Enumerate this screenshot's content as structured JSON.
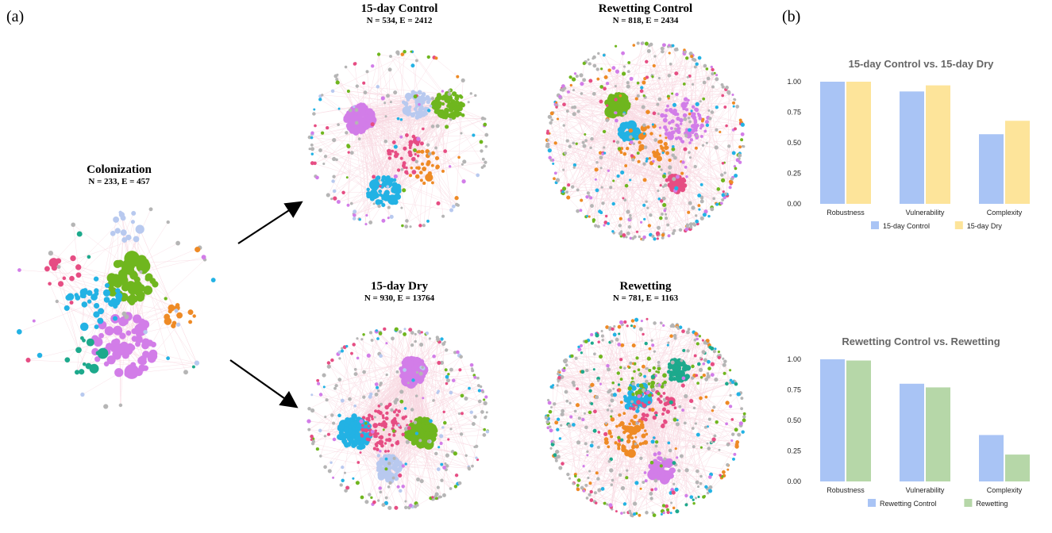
{
  "panels": {
    "a": "(a)",
    "b": "(b)"
  },
  "networks": [
    {
      "id": "colonization",
      "title": "Colonization",
      "stats": "N = 233, E = 457",
      "nodes": 233,
      "clusters": [
        {
          "color": "green",
          "fx": 0.58,
          "fy": 0.38,
          "r": 0.24,
          "share": 0.22,
          "size": 1.6
        },
        {
          "color": "violet",
          "fx": 0.55,
          "fy": 0.7,
          "r": 0.3,
          "share": 0.28,
          "size": 1.5
        },
        {
          "color": "cyan",
          "fx": 0.4,
          "fy": 0.5,
          "r": 0.28,
          "share": 0.14,
          "size": 1.2
        },
        {
          "color": "orange",
          "fx": 0.82,
          "fy": 0.55,
          "r": 0.14,
          "share": 0.05,
          "size": 1.0
        },
        {
          "color": "pink",
          "fx": 0.25,
          "fy": 0.35,
          "r": 0.18,
          "share": 0.05,
          "size": 1.0
        },
        {
          "color": "teal",
          "fx": 0.35,
          "fy": 0.75,
          "r": 0.2,
          "share": 0.05,
          "size": 1.0
        },
        {
          "color": "lightblue",
          "fx": 0.55,
          "fy": 0.12,
          "r": 0.18,
          "share": 0.06,
          "size": 1.0
        }
      ]
    },
    {
      "id": "control15",
      "title": "15-day Control",
      "stats": "N = 534, E = 2412",
      "nodes": 534,
      "clusters": [
        {
          "color": "violet",
          "fx": 0.28,
          "fy": 0.38,
          "r": 0.16,
          "share": 0.2,
          "size": 1.6
        },
        {
          "color": "cyan",
          "fx": 0.42,
          "fy": 0.78,
          "r": 0.18,
          "share": 0.12,
          "size": 1.3
        },
        {
          "color": "green",
          "fx": 0.78,
          "fy": 0.3,
          "r": 0.16,
          "share": 0.14,
          "size": 1.3
        },
        {
          "color": "lightblue",
          "fx": 0.6,
          "fy": 0.3,
          "r": 0.16,
          "share": 0.1,
          "size": 1.1
        },
        {
          "color": "pink",
          "fx": 0.55,
          "fy": 0.58,
          "r": 0.22,
          "share": 0.06,
          "size": 1.0
        },
        {
          "color": "orange",
          "fx": 0.65,
          "fy": 0.65,
          "r": 0.2,
          "share": 0.05,
          "size": 1.0
        }
      ]
    },
    {
      "id": "rewetControl",
      "title": "Rewetting Control",
      "stats": "N = 818, E = 2434",
      "nodes": 818,
      "clusters": [
        {
          "color": "green",
          "fx": 0.36,
          "fy": 0.32,
          "r": 0.11,
          "share": 0.14,
          "size": 1.5
        },
        {
          "color": "cyan",
          "fx": 0.42,
          "fy": 0.46,
          "r": 0.1,
          "share": 0.06,
          "size": 1.4
        },
        {
          "color": "pink",
          "fx": 0.66,
          "fy": 0.72,
          "r": 0.08,
          "share": 0.06,
          "size": 1.3
        },
        {
          "color": "violet",
          "fx": 0.7,
          "fy": 0.4,
          "r": 0.24,
          "share": 0.1,
          "size": 1.0
        },
        {
          "color": "orange",
          "fx": 0.5,
          "fy": 0.55,
          "r": 0.26,
          "share": 0.04,
          "size": 1.0
        }
      ]
    },
    {
      "id": "dry15",
      "title": "15-day Dry",
      "stats": "N = 930, E = 13764",
      "nodes": 930,
      "clusters": [
        {
          "color": "violet",
          "fx": 0.58,
          "fy": 0.24,
          "r": 0.14,
          "share": 0.16,
          "size": 1.5
        },
        {
          "color": "green",
          "fx": 0.63,
          "fy": 0.58,
          "r": 0.15,
          "share": 0.18,
          "size": 1.4
        },
        {
          "color": "cyan",
          "fx": 0.26,
          "fy": 0.58,
          "r": 0.18,
          "share": 0.16,
          "size": 1.3
        },
        {
          "color": "lightblue",
          "fx": 0.45,
          "fy": 0.78,
          "r": 0.14,
          "share": 0.1,
          "size": 1.2
        },
        {
          "color": "pink",
          "fx": 0.42,
          "fy": 0.55,
          "r": 0.28,
          "share": 0.08,
          "size": 1.0
        }
      ]
    },
    {
      "id": "rewet",
      "title": "Rewetting",
      "stats": "N = 781, E = 1163",
      "nodes": 781,
      "clusters": [
        {
          "color": "teal",
          "fx": 0.66,
          "fy": 0.26,
          "r": 0.12,
          "share": 0.06,
          "size": 1.4
        },
        {
          "color": "cyan",
          "fx": 0.46,
          "fy": 0.4,
          "r": 0.14,
          "share": 0.06,
          "size": 1.4
        },
        {
          "color": "orange",
          "fx": 0.4,
          "fy": 0.58,
          "r": 0.22,
          "share": 0.08,
          "size": 1.1
        },
        {
          "color": "violet",
          "fx": 0.58,
          "fy": 0.76,
          "r": 0.12,
          "share": 0.06,
          "size": 1.4
        },
        {
          "color": "pink",
          "fx": 0.54,
          "fy": 0.45,
          "r": 0.22,
          "share": 0.05,
          "size": 1.0
        },
        {
          "color": "green",
          "fx": 0.48,
          "fy": 0.3,
          "r": 0.24,
          "share": 0.05,
          "size": 1.0
        }
      ]
    }
  ],
  "colors": {
    "green": "#6fb61e",
    "violet": "#d27de8",
    "cyan": "#23b2e4",
    "pink": "#e64d83",
    "orange": "#ee8a25",
    "teal": "#1da98c",
    "lightblue": "#b8c9ef",
    "gray": "#b5b5b5",
    "edge": "#f2b7c8",
    "bar_blue": "#a9c4f5",
    "bar_yellow": "#fde49a",
    "bar_green": "#b6d7a8"
  },
  "chart_data": [
    {
      "type": "bar",
      "title": "15-day Control vs. 15-day Dry",
      "categories": [
        "Robustness",
        "Vulnerability",
        "Complexity"
      ],
      "series": [
        {
          "name": "15-day Control",
          "values": [
            1.0,
            0.92,
            0.57
          ],
          "color": "#a9c4f5"
        },
        {
          "name": "15-day Dry",
          "values": [
            1.0,
            0.97,
            0.68
          ],
          "color": "#fde49a"
        }
      ],
      "yticks": [
        "0.00",
        "0.25",
        "0.50",
        "0.75",
        "1.00"
      ],
      "ylim": [
        0,
        1.0
      ],
      "legend": "bottom"
    },
    {
      "type": "bar",
      "title": "Rewetting Control vs. Rewetting",
      "categories": [
        "Robustness",
        "Vulnerability",
        "Complexity"
      ],
      "series": [
        {
          "name": "Rewetting Control",
          "values": [
            1.0,
            0.8,
            0.38
          ],
          "color": "#a9c4f5"
        },
        {
          "name": "Rewetting",
          "values": [
            0.99,
            0.77,
            0.22
          ],
          "color": "#b6d7a8"
        }
      ],
      "yticks": [
        "0.00",
        "0.25",
        "0.50",
        "0.75",
        "1.00"
      ],
      "ylim": [
        0,
        1.0
      ],
      "legend": "bottom"
    }
  ]
}
